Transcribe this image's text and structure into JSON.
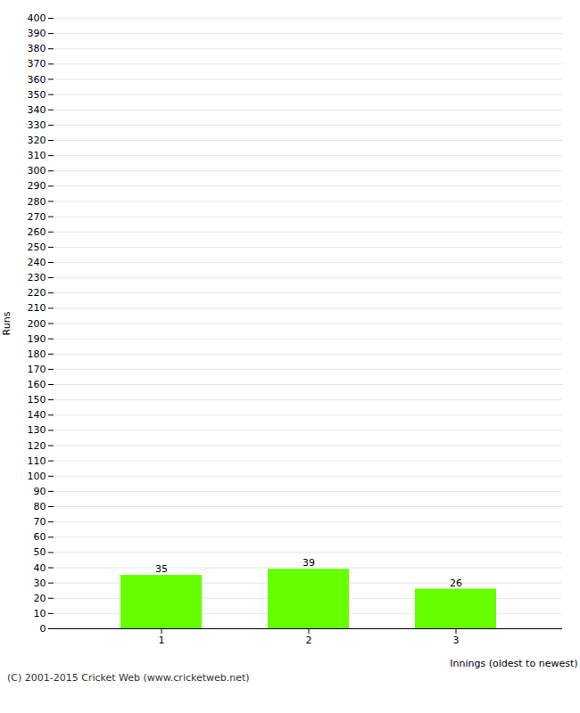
{
  "chart_data": {
    "type": "bar",
    "categories": [
      "1",
      "2",
      "3"
    ],
    "values": [
      35,
      39,
      26
    ],
    "color": "#66ff00",
    "xlabel": "Innings (oldest to newest)",
    "ylabel": "Runs",
    "caption": "(C) 2001-2015 Cricket Web (www.cricketweb.net)",
    "ylim": [
      0,
      400
    ],
    "yticks": [
      0,
      10,
      20,
      30,
      40,
      50,
      60,
      70,
      80,
      90,
      100,
      110,
      120,
      130,
      140,
      150,
      160,
      170,
      180,
      190,
      200,
      210,
      220,
      230,
      240,
      250,
      260,
      270,
      280,
      290,
      300,
      310,
      320,
      330,
      340,
      350,
      360,
      370,
      380,
      390,
      400
    ],
    "grid": true,
    "data_labels": true
  }
}
